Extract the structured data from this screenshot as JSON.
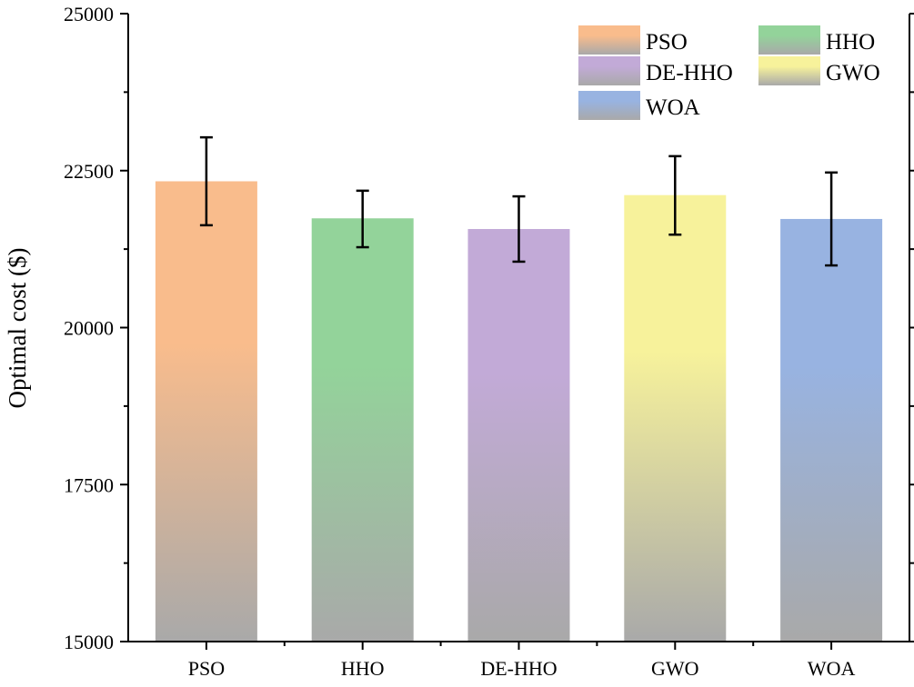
{
  "chart_data": {
    "type": "bar",
    "title": "",
    "xlabel": "",
    "ylabel": "Optimal cost ($)",
    "ylim": [
      15000,
      25000
    ],
    "yticks": [
      15000,
      17500,
      20000,
      22500,
      25000
    ],
    "ytick_labels": [
      "15000",
      "17500",
      "20000",
      "22500",
      "25000"
    ],
    "categories": [
      "PSO",
      "HHO",
      "DE-HHO",
      "GWO",
      "WOA"
    ],
    "values": [
      22330,
      21740,
      21570,
      22110,
      21730
    ],
    "error_low": [
      21630,
      21280,
      21050,
      21480,
      20990
    ],
    "error_high": [
      23030,
      22180,
      22090,
      22730,
      22470
    ],
    "colors": [
      "#f9bc8c",
      "#93d39a",
      "#c2aad7",
      "#f7f29b",
      "#98b3e1"
    ],
    "fade_color": "#a9a9a9",
    "legend": {
      "placement": "top-right",
      "entries": [
        "PSO",
        "HHO",
        "DE-HHO",
        "GWO",
        "WOA"
      ]
    }
  }
}
